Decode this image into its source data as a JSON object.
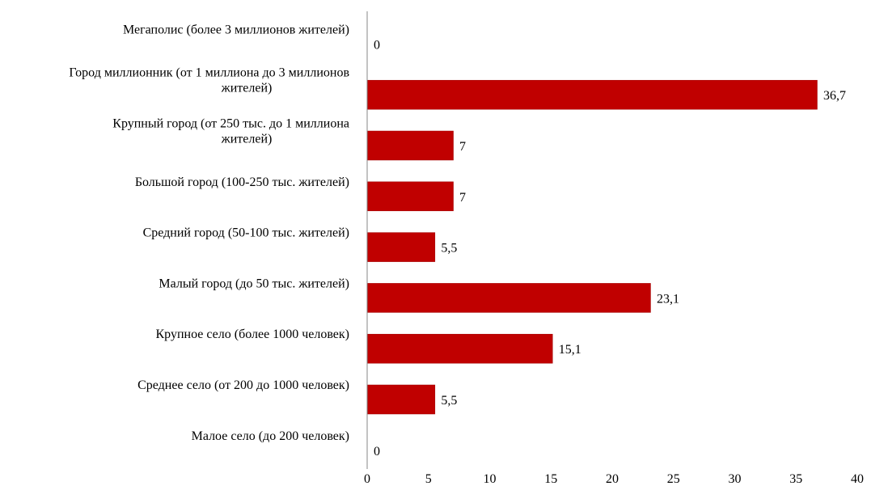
{
  "chart_data": {
    "type": "bar",
    "orientation": "horizontal",
    "categories": [
      [
        "Мегаполис (более 3 миллионов жителей)"
      ],
      [
        "Город миллионник (от 1 миллиона до 3 миллионов",
        "жителей)"
      ],
      [
        "Крупный город (от 250 тыс. до 1 миллиона",
        "жителей)"
      ],
      [
        "Большой город (100-250 тыс. жителей)"
      ],
      [
        "Средний город (50-100 тыс. жителей)"
      ],
      [
        "Малый город (до 50 тыс. жителей)"
      ],
      [
        "Крупное село (более 1000 человек)"
      ],
      [
        "Среднее село (от 200 до 1000 человек)"
      ],
      [
        "Малое село (до 200 человек)"
      ]
    ],
    "values": [
      0,
      36.7,
      7,
      7,
      5.5,
      23.1,
      15.1,
      5.5,
      0
    ],
    "data_labels": [
      "0",
      "36,7",
      "7",
      "7",
      "5,5",
      "23,1",
      "15,1",
      "5,5",
      "0"
    ],
    "xlim": [
      0,
      40
    ],
    "x_ticks": [
      0,
      5,
      10,
      15,
      20,
      25,
      30,
      35,
      40
    ],
    "bar_color": "#c00000",
    "grid": false,
    "legend": "none"
  }
}
